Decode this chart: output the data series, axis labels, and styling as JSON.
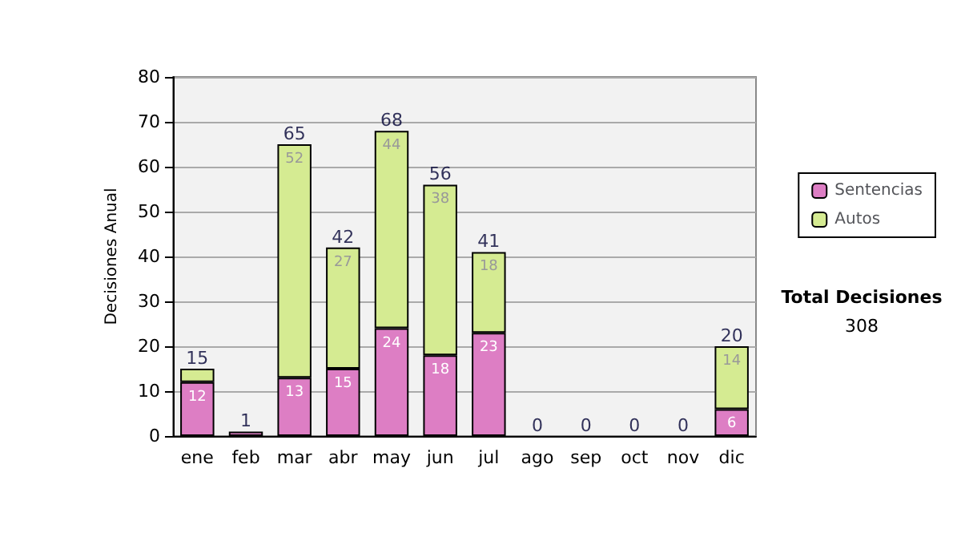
{
  "chart_data": {
    "type": "bar",
    "stacked": true,
    "ylabel": "Decisiones Anual",
    "categories": [
      "ene",
      "feb",
      "mar",
      "abr",
      "may",
      "jun",
      "jul",
      "ago",
      "sep",
      "oct",
      "nov",
      "dic"
    ],
    "series": [
      {
        "name": "Sentencias",
        "color": "#dd7ec4",
        "values": [
          12,
          1,
          13,
          15,
          24,
          18,
          23,
          0,
          0,
          0,
          0,
          6
        ],
        "value_labels": [
          "12",
          null,
          "13",
          "15",
          "24",
          "18",
          "23",
          null,
          null,
          null,
          null,
          "6"
        ]
      },
      {
        "name": "Autos",
        "color": "#d5eb92",
        "values": [
          3,
          0,
          52,
          27,
          44,
          38,
          18,
          0,
          0,
          0,
          0,
          14
        ],
        "value_labels": [
          null,
          null,
          "52",
          "27",
          "44",
          "38",
          "18",
          null,
          null,
          null,
          null,
          "14"
        ]
      }
    ],
    "totals": [
      "15",
      "1",
      "65",
      "42",
      "68",
      "56",
      "41",
      "0",
      "0",
      "0",
      "0",
      "20"
    ],
    "ylim": [
      0,
      80
    ],
    "yticks": [
      0,
      10,
      20,
      30,
      40,
      50,
      60,
      70,
      80
    ],
    "grid": "y",
    "legend": "right",
    "annotations": [
      "Total Decisiones",
      "308"
    ]
  }
}
